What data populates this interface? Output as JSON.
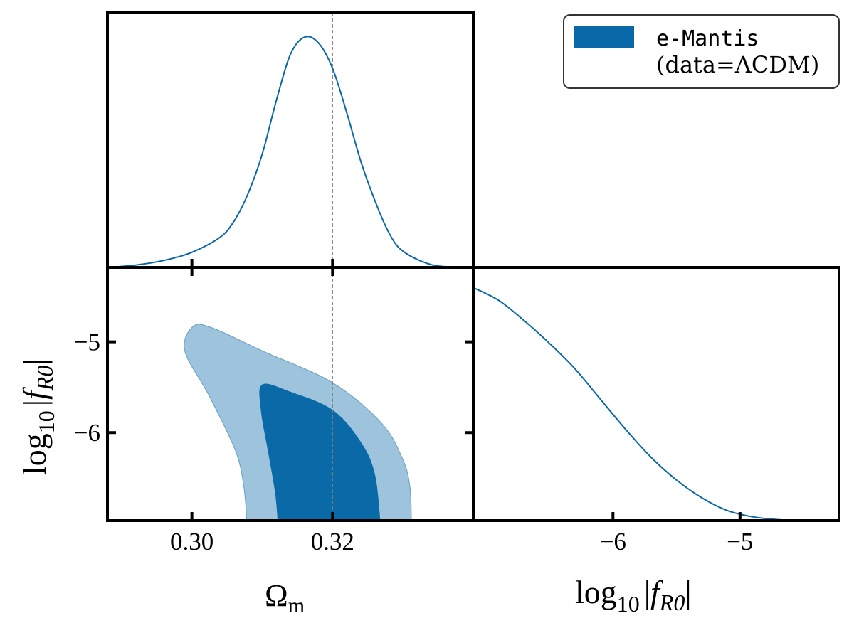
{
  "chart_data": {
    "type": "triangle-plot",
    "parameters": [
      "Omega_m",
      "log10_fR0"
    ],
    "legend": {
      "position": "top-right",
      "entries": [
        {
          "line1": "e-Mantis",
          "line2": "(data=ΛCDM)",
          "color": "#0868a8"
        }
      ]
    },
    "reference_value": {
      "Omega_m": 0.32,
      "style": "dashed",
      "color": "#7f7f7f"
    },
    "colors": {
      "line": "#0868a8",
      "sigma1": "#0a6aa8",
      "sigma2": "#9dc4dc"
    },
    "panels": [
      {
        "id": "omega-m-marginal",
        "type": "line",
        "x": [
          0.288,
          0.292,
          0.296,
          0.3,
          0.304,
          0.306,
          0.308,
          0.31,
          0.312,
          0.314,
          0.316,
          0.318,
          0.32,
          0.322,
          0.324,
          0.326,
          0.328,
          0.33,
          0.334,
          0.338
        ],
        "y": [
          0.0,
          0.01,
          0.03,
          0.065,
          0.13,
          0.2,
          0.32,
          0.49,
          0.72,
          0.92,
          0.995,
          0.97,
          0.86,
          0.67,
          0.46,
          0.29,
          0.15,
          0.07,
          0.012,
          0.0
        ],
        "xlim": [
          0.288,
          0.34
        ],
        "ylim": [
          0,
          1.1
        ]
      },
      {
        "id": "joint-contour",
        "type": "contour",
        "xlim": [
          0.288,
          0.34
        ],
        "ylim": [
          -6.97,
          -4.18
        ],
        "sigma2": [
          [
            0.3078,
            -6.97
          ],
          [
            0.3074,
            -6.6
          ],
          [
            0.3062,
            -6.2
          ],
          [
            0.3025,
            -5.6
          ],
          [
            0.299,
            -5.1
          ],
          [
            0.3002,
            -4.83
          ],
          [
            0.303,
            -4.85
          ],
          [
            0.31,
            -5.1
          ],
          [
            0.32,
            -5.45
          ],
          [
            0.327,
            -5.9
          ],
          [
            0.33,
            -6.3
          ],
          [
            0.331,
            -6.6
          ],
          [
            0.3312,
            -6.97
          ]
        ],
        "sigma1": [
          [
            0.3122,
            -6.97
          ],
          [
            0.3118,
            -6.65
          ],
          [
            0.3108,
            -6.2
          ],
          [
            0.3098,
            -5.75
          ],
          [
            0.31,
            -5.47
          ],
          [
            0.314,
            -5.55
          ],
          [
            0.32,
            -5.75
          ],
          [
            0.324,
            -6.1
          ],
          [
            0.326,
            -6.45
          ],
          [
            0.3268,
            -6.97
          ]
        ],
        "ytick_values": [
          -5,
          -6
        ]
      },
      {
        "id": "fr0-marginal",
        "type": "line",
        "x": [
          -7.1,
          -6.9,
          -6.7,
          -6.5,
          -6.3,
          -6.1,
          -5.9,
          -5.7,
          -5.5,
          -5.3,
          -5.1,
          -4.9,
          -4.7,
          -4.5
        ],
        "y": [
          0.92,
          0.87,
          0.79,
          0.7,
          0.6,
          0.48,
          0.36,
          0.25,
          0.16,
          0.09,
          0.04,
          0.015,
          0.004,
          0.0
        ],
        "xlim": [
          -7.1,
          -4.22
        ],
        "ylim": [
          0,
          1.0
        ],
        "xtick_values": [
          -6,
          -5
        ]
      }
    ],
    "omega_ticks": [
      {
        "value": 0.3,
        "label": "0.30"
      },
      {
        "value": 0.32,
        "label": "0.32"
      }
    ],
    "fr0_ticks": [
      {
        "value": -6,
        "label": "−6"
      },
      {
        "value": -5,
        "label": "−5"
      }
    ],
    "axis_labels": {
      "omega_base": "Ω",
      "omega_sub": "m",
      "fr0_prefix": "log",
      "fr0_base": "10",
      "fr0_bar": "|",
      "fr0_f": "f",
      "fr0_sub": "R0"
    }
  }
}
